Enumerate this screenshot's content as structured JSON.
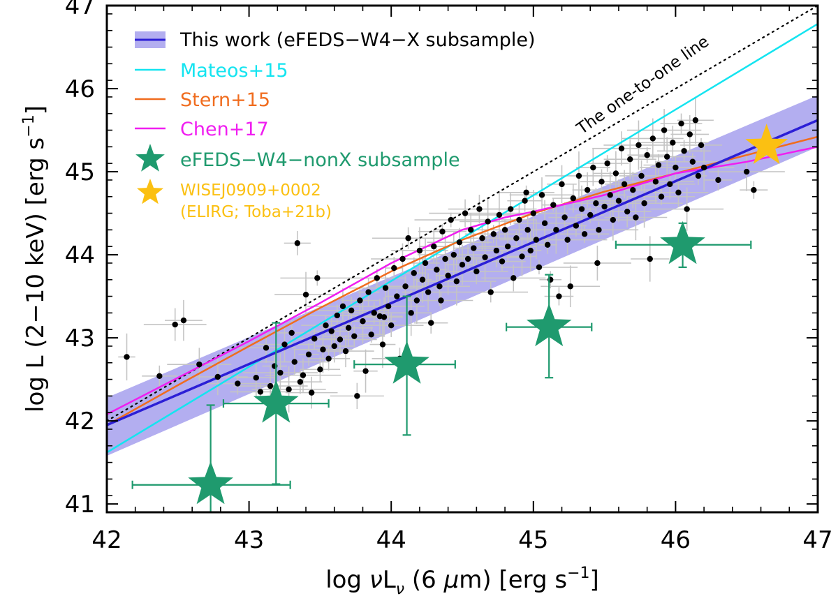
{
  "chart_data": {
    "type": "scatter",
    "xlabel_parts": {
      "prefix": "log ",
      "nu": "ν",
      "L": "L",
      "sub": "ν",
      "paren": " (6 ",
      "mu": "μ",
      "unit": "m) [erg s",
      "exp": "−1",
      "close": "]"
    },
    "ylabel_parts": {
      "main": "log L (2−10 keV) [erg s",
      "exp": "−1",
      "close": "]"
    },
    "xlim": [
      42,
      47
    ],
    "ylim": [
      40.9,
      47
    ],
    "xticks": [
      42,
      43,
      44,
      45,
      46,
      47
    ],
    "yticks": [
      41,
      42,
      43,
      44,
      45,
      46,
      47
    ],
    "colors": {
      "band": "#b3aef0",
      "this_work": "#2c1fd6",
      "mateos": "#14e4f0",
      "stern": "#f06c1e",
      "chen": "#f01ef0",
      "nonx": "#1f9a6e",
      "wise": "#fbc012",
      "points": "#000000",
      "errbars": "#c4c4c4"
    },
    "legend": {
      "this_work": "This work (eFEDS−W4−X subsample)",
      "mateos": "Mateos+15",
      "stern": "Stern+15",
      "chen": "Chen+17",
      "nonx": "eFEDS−W4−nonX subsample",
      "wise_line1": "WISEJ0909+0002",
      "wise_line2": "(ELIRG; Toba+21b)"
    },
    "annotation": "The one-to-one line",
    "relations": {
      "one_to_one": [
        [
          42,
          42
        ],
        [
          47,
          47
        ]
      ],
      "this_work": {
        "x": [
          42,
          47
        ],
        "y": [
          41.95,
          45.62
        ]
      },
      "band": {
        "x": [
          42,
          47
        ],
        "upper": [
          42.28,
          45.92
        ],
        "lower": [
          41.58,
          45.3
        ]
      },
      "mateos": {
        "x": [
          42,
          47
        ],
        "y": [
          41.62,
          46.78
        ]
      },
      "stern": {
        "x": [
          42,
          42.5,
          43,
          43.5,
          44,
          44.5,
          45,
          45.5,
          46,
          46.5,
          47
        ],
        "y": [
          41.95,
          42.43,
          42.9,
          43.36,
          43.8,
          44.18,
          44.5,
          44.76,
          44.98,
          45.2,
          45.42
        ]
      },
      "chen": {
        "x": [
          42,
          42.5,
          43,
          43.5,
          44,
          44.5,
          44.8,
          45,
          45.2,
          45.5,
          46,
          46.5,
          47
        ],
        "y": [
          42.08,
          42.52,
          42.96,
          43.42,
          43.9,
          44.3,
          44.45,
          44.52,
          44.6,
          44.72,
          44.98,
          45.12,
          45.3
        ]
      }
    },
    "nonx_points": [
      {
        "x": 42.73,
        "y": 41.23,
        "xerr": [
          0.55,
          0.56
        ],
        "yerr": [
          0.5,
          0.96
        ]
      },
      {
        "x": 43.19,
        "y": 42.21,
        "xerr": [
          0.37,
          0.37
        ],
        "yerr": [
          0.97,
          0.97
        ]
      },
      {
        "x": 44.11,
        "y": 42.68,
        "xerr": [
          0.37,
          0.34
        ],
        "yerr": [
          0.85,
          0.82
        ]
      },
      {
        "x": 45.11,
        "y": 43.13,
        "xerr": [
          0.3,
          0.3
        ],
        "yerr": [
          0.61,
          0.63
        ]
      },
      {
        "x": 46.05,
        "y": 44.12,
        "xerr": [
          0.47,
          0.48
        ],
        "yerr": [
          0.27,
          0.26
        ]
      }
    ],
    "wise_point": {
      "x": 46.64,
      "y": 45.31
    },
    "sample_points": [
      [
        42.14,
        42.77
      ],
      [
        42.37,
        42.54
      ],
      [
        42.48,
        43.16
      ],
      [
        42.54,
        43.21
      ],
      [
        42.65,
        42.68
      ],
      [
        42.78,
        42.53
      ],
      [
        42.92,
        42.45
      ],
      [
        43.05,
        42.52
      ],
      [
        43.08,
        42.35
      ],
      [
        43.12,
        42.88
      ],
      [
        43.15,
        42.42
      ],
      [
        43.18,
        42.66
      ],
      [
        43.22,
        42.58
      ],
      [
        43.25,
        42.92
      ],
      [
        43.28,
        42.38
      ],
      [
        43.3,
        43.06
      ],
      [
        43.32,
        42.71
      ],
      [
        43.34,
        44.14
      ],
      [
        43.36,
        42.47
      ],
      [
        43.38,
        42.55
      ],
      [
        43.4,
        43.52
      ],
      [
        43.42,
        42.8
      ],
      [
        43.44,
        42.34
      ],
      [
        43.46,
        42.99
      ],
      [
        43.48,
        43.72
      ],
      [
        43.5,
        42.62
      ],
      [
        43.52,
        42.86
      ],
      [
        43.54,
        43.15
      ],
      [
        43.56,
        42.75
      ],
      [
        43.58,
        43.08
      ],
      [
        43.6,
        42.9
      ],
      [
        43.62,
        43.27
      ],
      [
        43.64,
        42.98
      ],
      [
        43.66,
        43.38
      ],
      [
        43.68,
        42.84
      ],
      [
        43.7,
        43.12
      ],
      [
        43.72,
        43.33
      ],
      [
        43.74,
        43.02
      ],
      [
        43.76,
        42.3
      ],
      [
        43.78,
        43.45
      ],
      [
        43.8,
        43.2
      ],
      [
        43.82,
        42.6
      ],
      [
        43.84,
        43.55
      ],
      [
        43.86,
        43.04
      ],
      [
        43.88,
        43.3
      ],
      [
        43.9,
        43.72
      ],
      [
        43.92,
        43.26
      ],
      [
        43.94,
        42.92
      ],
      [
        43.96,
        43.6
      ],
      [
        43.98,
        43.38
      ],
      [
        44.0,
        43.15
      ],
      [
        44.02,
        43.84
      ],
      [
        44.04,
        43.5
      ],
      [
        44.06,
        42.75
      ],
      [
        44.08,
        43.95
      ],
      [
        44.1,
        43.62
      ],
      [
        44.12,
        44.2
      ],
      [
        44.14,
        43.3
      ],
      [
        44.16,
        43.78
      ],
      [
        44.18,
        43.45
      ],
      [
        44.2,
        44.05
      ],
      [
        44.22,
        43.7
      ],
      [
        44.24,
        43.9
      ],
      [
        44.26,
        43.55
      ],
      [
        44.28,
        43.18
      ],
      [
        44.3,
        44.1
      ],
      [
        44.32,
        43.82
      ],
      [
        44.34,
        43.62
      ],
      [
        44.36,
        44.28
      ],
      [
        44.38,
        43.95
      ],
      [
        44.4,
        43.75
      ],
      [
        44.42,
        44.42
      ],
      [
        44.44,
        44.0
      ],
      [
        44.46,
        43.68
      ],
      [
        44.48,
        44.15
      ],
      [
        44.5,
        43.88
      ],
      [
        44.52,
        44.5
      ],
      [
        44.54,
        43.95
      ],
      [
        44.56,
        44.3
      ],
      [
        44.58,
        44.08
      ],
      [
        44.6,
        43.8
      ],
      [
        44.62,
        44.55
      ],
      [
        44.64,
        44.2
      ],
      [
        44.66,
        43.97
      ],
      [
        44.68,
        44.4
      ],
      [
        44.7,
        43.55
      ],
      [
        44.72,
        44.25
      ],
      [
        44.74,
        44.05
      ],
      [
        44.76,
        44.48
      ],
      [
        44.78,
        43.92
      ],
      [
        44.8,
        44.3
      ],
      [
        44.82,
        44.1
      ],
      [
        44.84,
        44.55
      ],
      [
        44.86,
        43.72
      ],
      [
        44.88,
        44.2
      ],
      [
        44.9,
        44.42
      ],
      [
        44.92,
        43.98
      ],
      [
        44.94,
        44.65
      ],
      [
        44.96,
        44.3
      ],
      [
        44.98,
        44.05
      ],
      [
        45.0,
        44.5
      ],
      [
        45.02,
        44.18
      ],
      [
        45.04,
        43.85
      ],
      [
        45.06,
        44.72
      ],
      [
        45.08,
        44.38
      ],
      [
        45.1,
        44.12
      ],
      [
        45.12,
        43.7
      ],
      [
        45.14,
        44.6
      ],
      [
        45.16,
        44.3
      ],
      [
        45.18,
        43.5
      ],
      [
        45.2,
        44.85
      ],
      [
        45.22,
        44.45
      ],
      [
        45.24,
        44.18
      ],
      [
        45.26,
        43.62
      ],
      [
        45.28,
        44.68
      ],
      [
        45.3,
        44.35
      ],
      [
        45.32,
        44.95
      ],
      [
        45.34,
        44.55
      ],
      [
        45.36,
        44.25
      ],
      [
        45.38,
        44.78
      ],
      [
        45.4,
        44.48
      ],
      [
        45.42,
        45.05
      ],
      [
        45.44,
        44.62
      ],
      [
        45.46,
        44.3
      ],
      [
        45.48,
        44.88
      ],
      [
        45.5,
        44.58
      ],
      [
        45.52,
        45.1
      ],
      [
        45.54,
        44.72
      ],
      [
        45.56,
        44.42
      ],
      [
        45.58,
        44.98
      ],
      [
        45.6,
        44.65
      ],
      [
        45.62,
        45.28
      ],
      [
        45.64,
        44.85
      ],
      [
        45.66,
        44.52
      ],
      [
        45.68,
        45.15
      ],
      [
        45.7,
        44.78
      ],
      [
        45.72,
        44.45
      ],
      [
        45.74,
        45.32
      ],
      [
        45.76,
        44.95
      ],
      [
        45.78,
        44.62
      ],
      [
        45.8,
        45.2
      ],
      [
        45.82,
        43.95
      ],
      [
        45.84,
        45.4
      ],
      [
        45.86,
        44.88
      ],
      [
        45.88,
        45.08
      ],
      [
        45.9,
        44.7
      ],
      [
        45.92,
        45.5
      ],
      [
        45.94,
        45.18
      ],
      [
        45.96,
        44.85
      ],
      [
        45.98,
        45.35
      ],
      [
        46.0,
        45.05
      ],
      [
        46.02,
        44.75
      ],
      [
        46.04,
        45.58
      ],
      [
        46.06,
        45.25
      ],
      [
        46.08,
        44.55
      ],
      [
        46.1,
        45.45
      ],
      [
        46.12,
        45.12
      ],
      [
        46.14,
        45.62
      ],
      [
        46.16,
        44.95
      ],
      [
        46.18,
        45.32
      ],
      [
        46.2,
        45.05
      ],
      [
        46.3,
        44.9
      ],
      [
        46.5,
        45.0
      ],
      [
        46.55,
        44.78
      ],
      [
        44.95,
        44.75
      ],
      [
        45.45,
        43.9
      ],
      [
        44.35,
        43.45
      ],
      [
        43.95,
        43.25
      ]
    ]
  }
}
